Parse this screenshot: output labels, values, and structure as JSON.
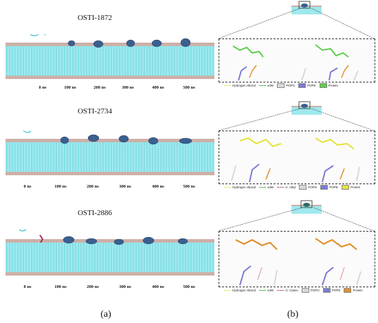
{
  "panel_a": {
    "label": "(a)",
    "systems": [
      {
        "name": "OSTI-1872",
        "times": [
          "0 ns",
          "100 ns",
          "200 ns",
          "300 ns",
          "400 ns",
          "500 ns"
        ]
      },
      {
        "name": "OSTI-2734",
        "times": [
          "0 ns",
          "100 ns",
          "200 ns",
          "300 ns",
          "400 ns",
          "500 ns"
        ]
      },
      {
        "name": "OSTI-2886",
        "times": [
          "0 ns",
          "100 ns",
          "200 ns",
          "300 ns",
          "400 ns",
          "500 ns"
        ]
      }
    ]
  },
  "panel_b": {
    "label": "(b)",
    "legends": [
      [
        "Hydrogen Hbond",
        "vdW",
        "POPG",
        "POPE",
        "Protein"
      ],
      [
        "Hydrogen Hbond",
        "vdW",
        "π- Alkyl",
        "POPG",
        "POPE",
        "Protein"
      ],
      [
        "Hydrogen Hbond",
        "vdW",
        "π- Cation",
        "POPG",
        "POPE",
        "Protein"
      ]
    ]
  },
  "colors": {
    "membrane": "#7fe3ea",
    "lipid_head": "#c9a9a0",
    "popg": "#d9d9d9",
    "pope": "#7b7bd6",
    "protein_1": "#5ccf4a",
    "protein_2": "#e6e23a",
    "protein_3": "#e0902e",
    "hbond": "#e8e060",
    "vdw": "#49b04a",
    "pi": "#b5548a"
  }
}
